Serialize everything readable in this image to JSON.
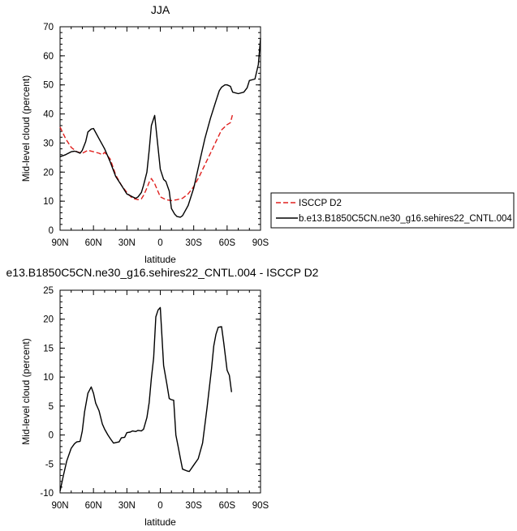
{
  "chart_data": [
    {
      "type": "line",
      "title": "JJA",
      "xlabel": "latitude",
      "ylabel": "Mid-level cloud (percent)",
      "xlim": [
        90,
        -90
      ],
      "ylim": [
        0,
        70
      ],
      "x_ticks": [
        90,
        60,
        30,
        0,
        -30,
        -60,
        -90
      ],
      "x_tick_labels": [
        "90N",
        "60N",
        "30N",
        "0",
        "30S",
        "60S",
        "90S"
      ],
      "y_ticks": [
        0,
        10,
        20,
        30,
        40,
        50,
        60,
        70
      ],
      "y_tick_labels": [
        "0",
        "10",
        "20",
        "30",
        "40",
        "50",
        "60",
        "70"
      ],
      "grid": false,
      "legend_position": "right",
      "series": [
        {
          "name": "ISCCP D2",
          "color": "#e0201e",
          "dash": "dashed",
          "x": [
            90,
            85,
            80,
            75,
            70,
            65,
            60,
            55,
            52,
            50,
            45,
            40,
            35,
            30,
            25,
            20,
            17,
            15,
            12,
            10,
            8,
            5,
            0,
            -5,
            -10,
            -15,
            -20,
            -25,
            -30,
            -35,
            -40,
            -45,
            -50,
            -55,
            -60,
            -63,
            -65
          ],
          "y": [
            35.5,
            31.5,
            28.5,
            27,
            26.5,
            27.5,
            27,
            26.5,
            26,
            26.8,
            24.5,
            19,
            15.5,
            13,
            11,
            10.5,
            10.8,
            12,
            14.5,
            16.5,
            17.8,
            16,
            11.5,
            10.5,
            10.2,
            10.5,
            11,
            12.5,
            15,
            18.5,
            22.5,
            26.5,
            30.5,
            34.5,
            36.3,
            37,
            40
          ]
        },
        {
          "name": "b.e13.B1850C5CN.ne30_g16.sehires22_CNTL.004",
          "color": "#000000",
          "dash": "solid",
          "x": [
            90,
            85,
            80,
            77,
            75,
            72,
            70,
            67,
            65,
            62,
            60,
            55,
            50,
            45,
            40,
            35,
            30,
            25,
            22,
            20,
            17,
            15,
            12,
            10,
            8,
            5,
            0,
            -3,
            -5,
            -8,
            -10,
            -13,
            -15,
            -18,
            -20,
            -25,
            -30,
            -35,
            -40,
            -45,
            -50,
            -53,
            -55,
            -58,
            -60,
            -63,
            -65,
            -70,
            -75,
            -78,
            -80,
            -85,
            -88,
            -90
          ],
          "y": [
            25.3,
            26,
            27,
            27.2,
            27,
            26.5,
            27.5,
            30.5,
            33.8,
            34.8,
            35,
            31.5,
            28,
            23.5,
            18.5,
            15.5,
            12.5,
            11.5,
            11,
            11.5,
            13,
            15.5,
            20,
            27.5,
            36,
            39.5,
            21,
            17.5,
            16.8,
            13.5,
            7.5,
            5.5,
            4.7,
            4.5,
            5,
            8.5,
            14.5,
            23,
            31.5,
            38.5,
            44.5,
            48,
            49.2,
            50,
            50,
            49.5,
            47.5,
            47,
            47.5,
            49,
            51.5,
            52,
            57,
            66
          ]
        }
      ],
      "legend": [
        "ISCCP D2",
        "b.e13.B1850C5CN.ne30_g16.sehires22_CNTL.004"
      ]
    },
    {
      "type": "line",
      "title": "e13.B1850C5CN.ne30_g16.sehires22_CNTL.004 - ISCCP D2",
      "xlabel": "latitude",
      "ylabel": "Mid-level cloud (percent)",
      "xlim": [
        90,
        -90
      ],
      "ylim": [
        -10,
        25
      ],
      "x_ticks": [
        90,
        60,
        30,
        0,
        -30,
        -60,
        -90
      ],
      "x_tick_labels": [
        "90N",
        "60N",
        "30N",
        "0",
        "30S",
        "60S",
        "90S"
      ],
      "y_ticks": [
        -10,
        -5,
        0,
        5,
        10,
        15,
        20,
        25
      ],
      "y_tick_labels": [
        "-10",
        "-5",
        "0",
        "5",
        "10",
        "15",
        "20",
        "25"
      ],
      "grid": false,
      "series": [
        {
          "color": "#000000",
          "dash": "solid",
          "x": [
            90,
            87,
            84,
            80,
            77,
            75,
            72,
            70,
            68,
            65,
            62,
            60,
            58,
            55,
            52,
            50,
            47,
            45,
            42,
            40,
            37,
            35,
            32,
            30,
            27,
            25,
            22,
            20,
            17,
            15,
            12,
            10,
            8,
            6,
            4,
            2,
            0,
            -3,
            -6,
            -8,
            -10,
            -12,
            -14,
            -16,
            -18,
            -20,
            -24,
            -26,
            -30,
            -34,
            -38,
            -42,
            -46,
            -48,
            -50,
            -52,
            -55,
            -57,
            -60,
            -62,
            -64
          ],
          "y": [
            -9.7,
            -7,
            -4.5,
            -2.3,
            -1.5,
            -1.2,
            -1.1,
            0.7,
            4,
            7.2,
            8.3,
            7.2,
            5.5,
            4.2,
            1.9,
            1,
            0,
            -0.6,
            -1.4,
            -1.3,
            -1.2,
            -0.5,
            -0.4,
            0.4,
            0.5,
            0.7,
            0.6,
            0.8,
            0.7,
            1,
            3,
            5.6,
            9.8,
            13.3,
            20.4,
            21.6,
            22,
            12,
            8.7,
            6.3,
            6.1,
            6,
            0,
            -2,
            -4,
            -5.9,
            -6.2,
            -6.3,
            -5.2,
            -4.1,
            -1.4,
            4.7,
            11.4,
            15.4,
            17.4,
            18.6,
            18.7,
            15.9,
            11.2,
            10.3,
            7.4
          ]
        }
      ]
    }
  ]
}
